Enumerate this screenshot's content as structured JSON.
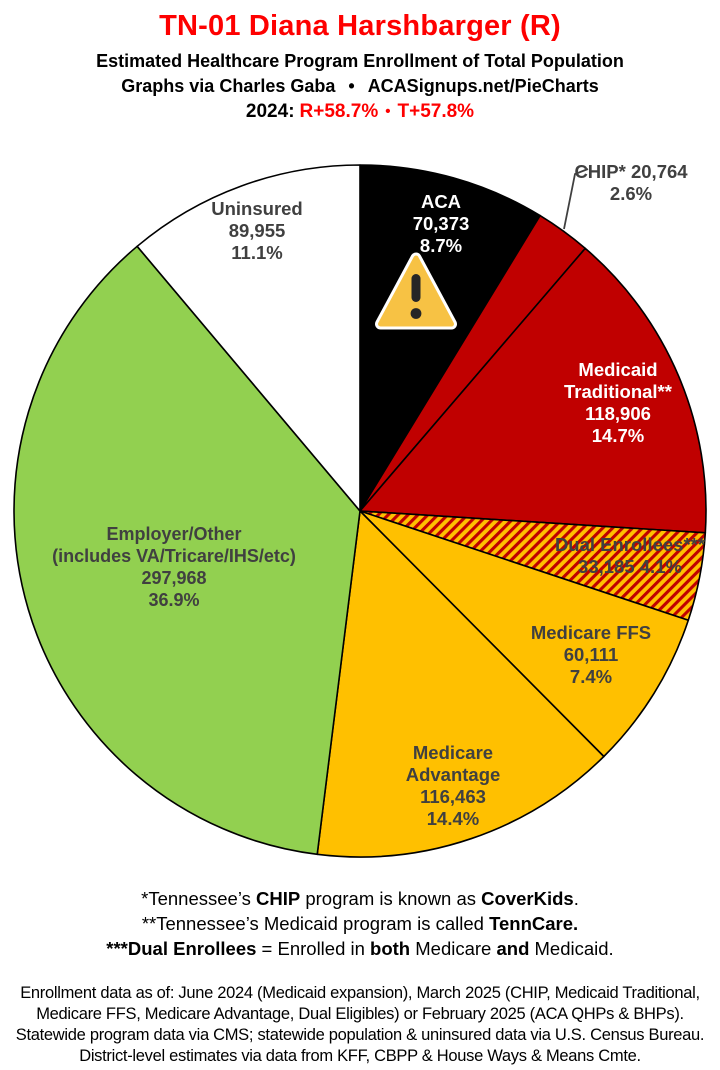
{
  "header": {
    "title": "TN-01 Diana Harshbarger (R)",
    "subtitle": "Estimated Healthcare Program Enrollment of Total Population",
    "credit_pre": "Graphs via Charles Gaba",
    "credit_sep": "•",
    "credit_site": "ACASignups.net/PieCharts",
    "year_label": "2024:",
    "year_r": "R+58.7%",
    "year_sep": "•",
    "year_t": "T+57.8%"
  },
  "chart_data": {
    "type": "pie",
    "title": "TN-01 Diana Harshbarger (R) — Estimated Healthcare Program Enrollment of Total Population",
    "start_position": "12-o-clock, clockwise",
    "hatch": {
      "bg": "#FFC000",
      "stripe": "#C00000"
    },
    "outline_color": "#000000",
    "slices": [
      {
        "id": "aca",
        "name": "ACA",
        "value": 70373,
        "pct": 8.7,
        "color": "#000000",
        "text_color": "#FFFFFF",
        "label_lines": [
          "ACA",
          "70,373",
          "8.7%"
        ],
        "has_warning_icon": true
      },
      {
        "id": "chip",
        "name": "CHIP",
        "value": 20764,
        "pct": 2.6,
        "color": "#C00000",
        "text_color": "#404040",
        "label_lines": [
          "CHIP* 20,764",
          "2.6%"
        ],
        "label_outside": true
      },
      {
        "id": "medicaid-traditional",
        "name": "Medicaid Traditional",
        "value": 118906,
        "pct": 14.7,
        "color": "#C00000",
        "text_color": "#FFFFFF",
        "label_lines": [
          "Medicaid",
          "Traditional**",
          "118,906",
          "14.7%"
        ]
      },
      {
        "id": "dual-enrollees",
        "name": "Dual Enrollees",
        "value": 33185,
        "pct": 4.1,
        "color": "hatch",
        "text_color": "#404040",
        "label_lines": [
          "Dual Enrollees***",
          "33,185 4.1%"
        ]
      },
      {
        "id": "medicare-ffs",
        "name": "Medicare FFS",
        "value": 60111,
        "pct": 7.4,
        "color": "#FFC000",
        "text_color": "#404040",
        "label_lines": [
          "Medicare FFS",
          "60,111",
          "7.4%"
        ]
      },
      {
        "id": "medicare-advantage",
        "name": "Medicare Advantage",
        "value": 116463,
        "pct": 14.4,
        "color": "#FFC000",
        "text_color": "#404040",
        "label_lines": [
          "Medicare",
          "Advantage",
          "116,463",
          "14.4%"
        ]
      },
      {
        "id": "employer-other",
        "name": "Employer/Other",
        "value": 297968,
        "pct": 36.9,
        "color": "#92D050",
        "text_color": "#404040",
        "label_lines": [
          "Employer/Other",
          "(includes VA/Tricare/IHS/etc)",
          "297,968",
          "36.9%"
        ]
      },
      {
        "id": "uninsured",
        "name": "Uninsured",
        "value": 89955,
        "pct": 11.1,
        "color": "#FFFFFF",
        "text_color": "#404040",
        "label_lines": [
          "Uninsured",
          "89,955",
          "11.1%"
        ]
      }
    ]
  },
  "footnotes": {
    "fn1": {
      "p1": "*Tennessee’s ",
      "b1": "CHIP",
      "p2": " program is known as ",
      "b2": "CoverKids",
      "p3": "."
    },
    "fn2": {
      "p1": "**Tennessee’s Medicaid program is called ",
      "b1": "TennCare."
    },
    "fn3": {
      "b1": "***Dual Enrollees",
      "p1": " = Enrolled in ",
      "b2": "both",
      "p2": " Medicare ",
      "b3": "and",
      "p3": " Medicaid."
    }
  },
  "source": {
    "lines": [
      "Enrollment data as of: June 2024 (Medicaid expansion), March 2025 (CHIP, Medicaid Traditional,",
      "Medicare FFS, Medicare Advantage, Dual Eligibles) or February 2025 (ACA QHPs & BHPs).",
      "Statewide program data via CMS; statewide population & uninsured data via U.S. Census Bureau.",
      "District-level estimates via data from KFF, CBPP & House Ways & Means Cmte."
    ]
  },
  "colors": {
    "title_red": "#FE0000",
    "label_gray": "#404040",
    "warning_yellow": "#F7C244",
    "warning_mark": "#262626"
  }
}
